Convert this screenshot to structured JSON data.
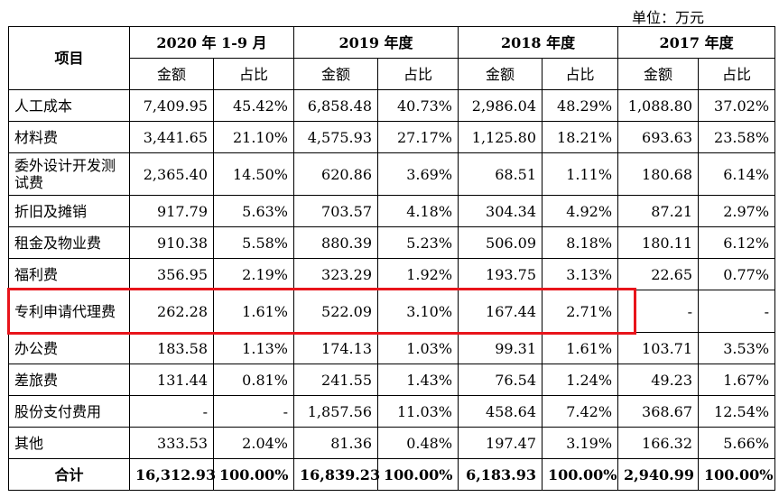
{
  "unit_label": "单位：万元",
  "header": {
    "item": "项目",
    "years": [
      "2020 年 1-9 月",
      "2019 年度",
      "2018 年度",
      "2017 年度"
    ],
    "amount": "金额",
    "ratio": "占比"
  },
  "rows": [
    {
      "item": "人工成本",
      "v": [
        "7,409.95",
        "45.42%",
        "6,858.48",
        "40.73%",
        "2,986.04",
        "48.29%",
        "1,088.80",
        "37.02%"
      ]
    },
    {
      "item": "材料费",
      "v": [
        "3,441.65",
        "21.10%",
        "4,575.93",
        "27.17%",
        "1,125.80",
        "18.21%",
        "693.63",
        "23.58%"
      ]
    },
    {
      "item": "委外设计开发测试费",
      "v": [
        "2,365.40",
        "14.50%",
        "620.86",
        "3.69%",
        "68.51",
        "1.11%",
        "180.68",
        "6.14%"
      ]
    },
    {
      "item": "折旧及摊销",
      "v": [
        "917.79",
        "5.63%",
        "703.57",
        "4.18%",
        "304.34",
        "4.92%",
        "87.21",
        "2.97%"
      ]
    },
    {
      "item": "租金及物业费",
      "v": [
        "910.38",
        "5.58%",
        "880.39",
        "5.23%",
        "506.09",
        "8.18%",
        "180.11",
        "6.12%"
      ]
    },
    {
      "item": "福利费",
      "v": [
        "356.95",
        "2.19%",
        "323.29",
        "1.92%",
        "193.75",
        "3.13%",
        "22.65",
        "0.77%"
      ]
    },
    {
      "item": "专利申请代理费",
      "v": [
        "262.28",
        "1.61%",
        "522.09",
        "3.10%",
        "167.44",
        "2.71%",
        "-",
        "-"
      ]
    },
    {
      "item": "办公费",
      "v": [
        "183.58",
        "1.13%",
        "174.13",
        "1.03%",
        "99.31",
        "1.61%",
        "103.71",
        "3.53%"
      ]
    },
    {
      "item": "差旅费",
      "v": [
        "131.44",
        "0.81%",
        "241.55",
        "1.43%",
        "76.54",
        "1.24%",
        "49.23",
        "1.67%"
      ]
    },
    {
      "item": "股份支付费用",
      "v": [
        "-",
        "-",
        "1,857.56",
        "11.03%",
        "458.64",
        "7.42%",
        "368.67",
        "12.54%"
      ]
    },
    {
      "item": "其他",
      "v": [
        "333.53",
        "2.04%",
        "81.36",
        "0.48%",
        "197.47",
        "3.19%",
        "166.32",
        "5.66%"
      ]
    }
  ],
  "total": {
    "item": "合计",
    "v": [
      "16,312.93",
      "100.00%",
      "16,839.23",
      "100.00%",
      "6,183.93",
      "100.00%",
      "2,940.99",
      "100.00%"
    ]
  }
}
